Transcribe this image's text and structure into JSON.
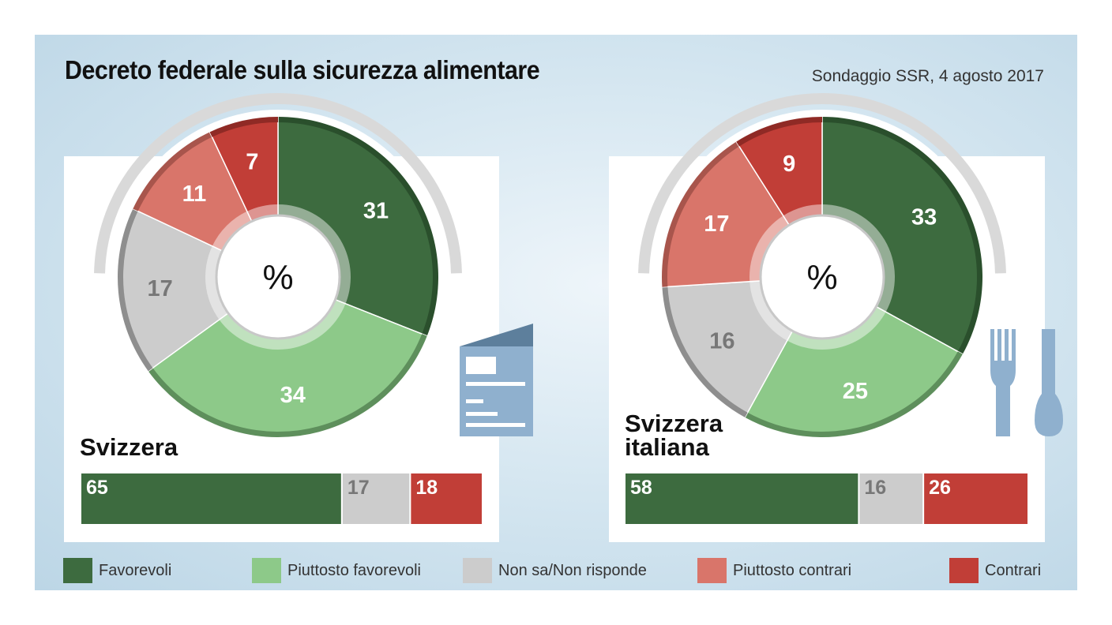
{
  "title": "Decreto federale sulla sicurezza alimentare",
  "source": "Sondaggio SSR, 4 agosto 2017",
  "colors": {
    "favorevoli": "#3d6b3f",
    "piuttosto_favorevoli": "#8dc989",
    "non_sa": "#cccccc",
    "piuttosto_contrari": "#d9756a",
    "contrari": "#c13e37"
  },
  "icons": {
    "left": "leaflet-icon",
    "right": "fork-spoon-icon"
  },
  "legend": [
    {
      "key": "favorevoli",
      "label": "Favorevoli"
    },
    {
      "key": "piuttosto_favorevoli",
      "label": "Piuttosto favorevoli"
    },
    {
      "key": "non_sa",
      "label": "Non sa/Non risponde"
    },
    {
      "key": "piuttosto_contrari",
      "label": "Piuttosto contrari"
    },
    {
      "key": "contrari",
      "label": "Contrari"
    }
  ],
  "chart_data": [
    {
      "type": "pie",
      "region": "Svizzera",
      "center_label": "%",
      "categories": [
        "Favorevoli",
        "Piuttosto favorevoli",
        "Non sa/Non risponde",
        "Piuttosto contrari",
        "Contrari"
      ],
      "values": [
        31,
        34,
        17,
        11,
        7
      ],
      "summary_bar": {
        "type": "bar",
        "categories": [
          "Favorevoli",
          "Non sa/Non risponde",
          "Contrari"
        ],
        "values": [
          65,
          17,
          18
        ]
      }
    },
    {
      "type": "pie",
      "region": "Svizzera\nitaliana",
      "center_label": "%",
      "categories": [
        "Favorevoli",
        "Piuttosto favorevoli",
        "Non sa/Non risponde",
        "Piuttosto contrari",
        "Contrari"
      ],
      "values": [
        33,
        25,
        16,
        17,
        9
      ],
      "summary_bar": {
        "type": "bar",
        "categories": [
          "Favorevoli",
          "Non sa/Non risponde",
          "Contrari"
        ],
        "values": [
          58,
          16,
          26
        ]
      }
    }
  ]
}
